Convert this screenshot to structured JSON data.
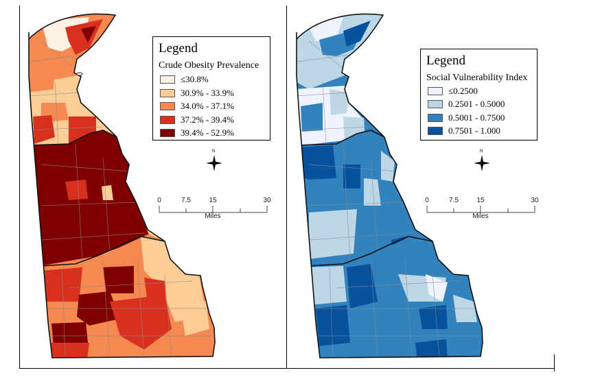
{
  "maps": [
    {
      "name": "obesity",
      "legend": {
        "title": "Legend",
        "subtitle": "Crude Obesity Prevalence",
        "items": [
          {
            "label": "≤30.8%",
            "color": "#fef0e3"
          },
          {
            "label": "30.9% - 33.9%",
            "color": "#fdcd98"
          },
          {
            "label": "34.0% - 37.1%",
            "color": "#f5894f"
          },
          {
            "label": "37.2% - 39.4%",
            "color": "#d7301f"
          },
          {
            "label": "39.4% - 52.9%",
            "color": "#7f0000"
          }
        ]
      },
      "scalebar": {
        "ticks": [
          "0",
          "7.5",
          "15",
          "30"
        ],
        "units": "Miles"
      },
      "north_label": "N"
    },
    {
      "name": "svi",
      "legend": {
        "title": "Legend",
        "subtitle": "Social Vulnerability Index",
        "items": [
          {
            "label": "≤0.2500",
            "color": "#eff3ff"
          },
          {
            "label": "0.2501 - 0.5000",
            "color": "#bdd7e7"
          },
          {
            "label": "0.5001 - 0.7500",
            "color": "#3182bd"
          },
          {
            "label": "0.7501 - 1.000",
            "color": "#08519c"
          }
        ]
      },
      "scalebar": {
        "ticks": [
          "0",
          "7.5",
          "15",
          "30"
        ],
        "units": "Miles"
      },
      "north_label": "N"
    }
  ]
}
